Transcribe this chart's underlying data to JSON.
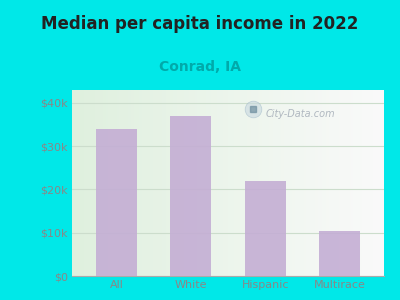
{
  "title": "Median per capita income in 2022",
  "subtitle": "Conrad, IA",
  "categories": [
    "All",
    "White",
    "Hispanic",
    "Multirace"
  ],
  "values": [
    34000,
    37000,
    22000,
    10500
  ],
  "bar_color": "#c4aed4",
  "title_fontsize": 12,
  "subtitle_fontsize": 10,
  "subtitle_color": "#00aaaa",
  "tick_label_color": "#888888",
  "background_outer": "#00e8e8",
  "yticks": [
    0,
    10000,
    20000,
    30000,
    40000
  ],
  "ytick_labels": [
    "$0",
    "$10k",
    "$20k",
    "$30k",
    "$40k"
  ],
  "ylim": [
    0,
    43000
  ],
  "watermark_text": "City-Data.com",
  "watermark_color": "#b0b8c0",
  "grid_color": "#ccddcc",
  "plot_bg_color_left": "#dff0de",
  "plot_bg_color_right": "#f5f8f5"
}
